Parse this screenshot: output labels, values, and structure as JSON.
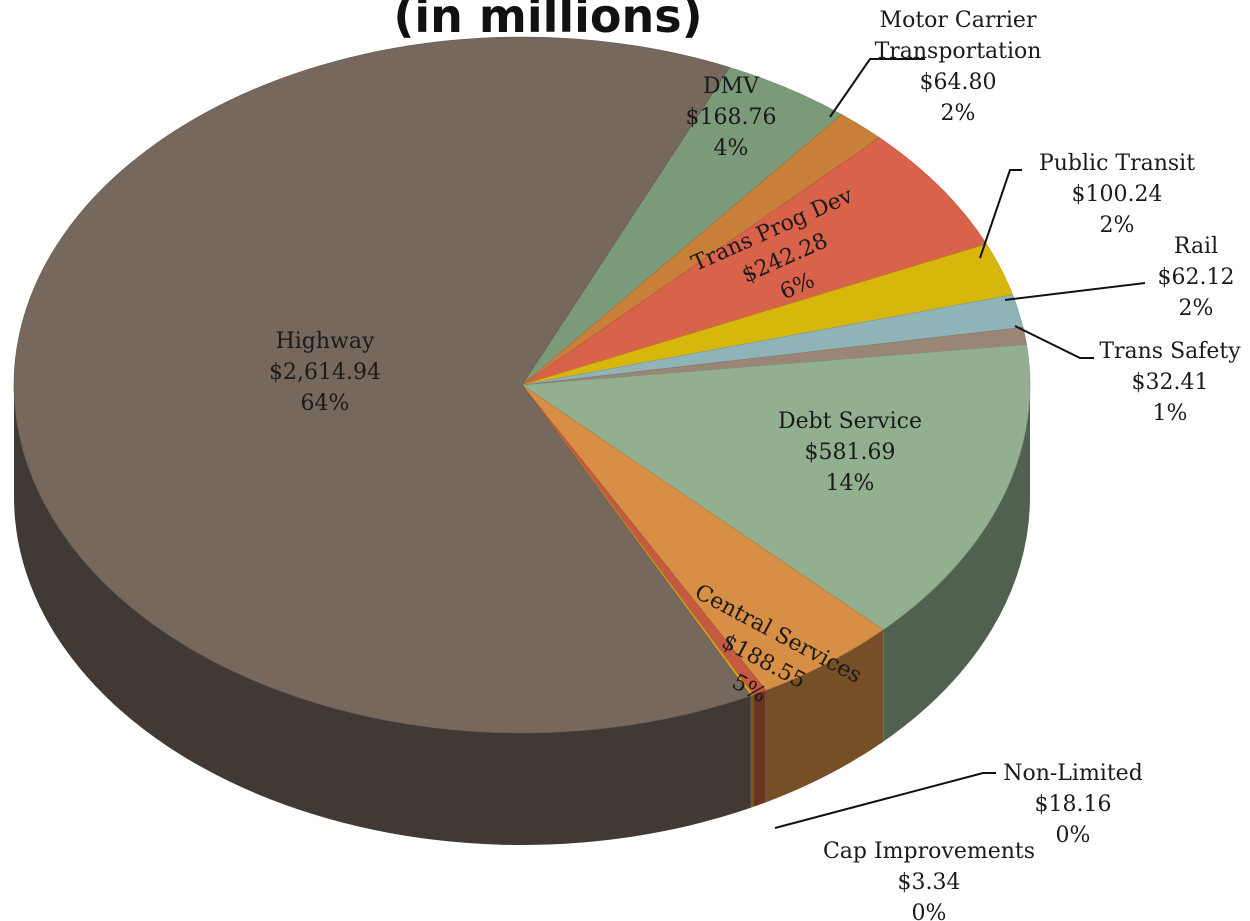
{
  "chart_data": {
    "type": "pie",
    "title": "(in millions)",
    "slices": [
      {
        "name": "DMV",
        "value": 168.76,
        "value_label": "$168.76",
        "percent_label": "4%",
        "color": "#7a9a7a"
      },
      {
        "name": "Motor Carrier Transportation",
        "name_lines": [
          "Motor Carrier",
          "Transportation"
        ],
        "value": 64.8,
        "value_label": "$64.80",
        "percent_label": "2%",
        "color": "#c87f3a"
      },
      {
        "name": "Trans Prog Dev",
        "value": 242.28,
        "value_label": "$242.28",
        "percent_label": "6%",
        "color": "#d9624a"
      },
      {
        "name": "Public Transit",
        "value": 100.24,
        "value_label": "$100.24",
        "percent_label": "2%",
        "color": "#d8b70c"
      },
      {
        "name": "Rail",
        "value": 62.12,
        "value_label": "$62.12",
        "percent_label": "2%",
        "color": "#8fb4b8"
      },
      {
        "name": "Trans Safety",
        "value": 32.41,
        "value_label": "$32.41",
        "percent_label": "1%",
        "color": "#9b8676"
      },
      {
        "name": "Debt Service",
        "value": 581.69,
        "value_label": "$581.69",
        "percent_label": "14%",
        "color": "#92b090"
      },
      {
        "name": "Central Services",
        "value": 188.55,
        "value_label": "$188.55",
        "percent_label": "5%",
        "color": "#d68f45"
      },
      {
        "name": "Non-Limited",
        "value": 18.16,
        "value_label": "$18.16",
        "percent_label": "0%",
        "color": "#c45a40"
      },
      {
        "name": "Cap Improvements",
        "value": 3.34,
        "value_label": "$3.34",
        "percent_label": "0%",
        "color": "#d9a81b"
      },
      {
        "name": "Highway",
        "value": 2614.94,
        "value_label": "$2,614.94",
        "percent_label": "64%",
        "color": "#76685c"
      }
    ],
    "legend": "none",
    "style": "3d-tilted"
  }
}
